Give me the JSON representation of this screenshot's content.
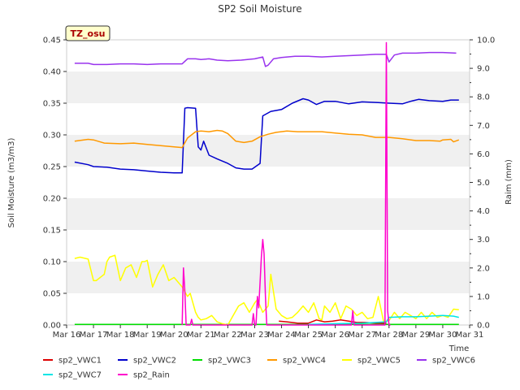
{
  "chart_data": {
    "type": "line",
    "title": "SP2 Soil Moisture",
    "xlabel": "Time",
    "ylabel": "Soil Moisture (m3/m3)",
    "y2label": "Raim (mm)",
    "station_badge": "TZ_osu",
    "xlim": [
      16,
      31
    ],
    "ylim": [
      0.0,
      0.45
    ],
    "y2lim": [
      0.0,
      10.0
    ],
    "x_ticks": [
      16,
      17,
      18,
      19,
      20,
      21,
      22,
      23,
      24,
      25,
      26,
      27,
      28,
      29,
      30,
      31
    ],
    "x_tick_labels": [
      "Mar 16",
      "Mar 17",
      "Mar 18",
      "Mar 19",
      "Mar 20",
      "Mar 21",
      "Mar 22",
      "Mar 23",
      "Mar 24",
      "Mar 25",
      "Mar 26",
      "Mar 27",
      "Mar 28",
      "Mar 29",
      "Mar 30",
      "Mar 31"
    ],
    "y_ticks": [
      0.0,
      0.05,
      0.1,
      0.15,
      0.2,
      0.25,
      0.3,
      0.35,
      0.4,
      0.45
    ],
    "y_tick_labels": [
      "0.00",
      "0.05",
      "0.10",
      "0.15",
      "0.20",
      "0.25",
      "0.30",
      "0.35",
      "0.40",
      "0.45"
    ],
    "y2_ticks": [
      0,
      1,
      2,
      3,
      4,
      5,
      6,
      7,
      8,
      9,
      10
    ],
    "y2_tick_labels": [
      "0.0",
      "1.0",
      "2.0",
      "3.0",
      "4.0",
      "5.0",
      "6.0",
      "7.0",
      "8.0",
      "9.0",
      "10.0"
    ],
    "band_step": 0.05,
    "series": [
      {
        "name": "sp2_VWC1",
        "color": "#dd0000",
        "axis": "left",
        "x": [
          23.9,
          24.2,
          24.6,
          25.0,
          25.3,
          25.6,
          25.9,
          26.2,
          26.5,
          26.8,
          27.1,
          27.5,
          27.9
        ],
        "y": [
          0.006,
          0.005,
          0.003,
          0.003,
          0.008,
          0.005,
          0.006,
          0.008,
          0.006,
          0.004,
          0.004,
          0.003,
          0.003
        ]
      },
      {
        "name": "sp2_VWC2",
        "color": "#0000cc",
        "axis": "left",
        "x": [
          16.3,
          16.8,
          17.0,
          17.5,
          18.0,
          18.5,
          19.0,
          19.5,
          20.0,
          20.3,
          20.4,
          20.5,
          20.8,
          20.9,
          21.0,
          21.1,
          21.3,
          21.6,
          22.0,
          22.3,
          22.6,
          22.9,
          23.2,
          23.3,
          23.6,
          24.0,
          24.4,
          24.8,
          25.0,
          25.3,
          25.6,
          26.0,
          26.5,
          27.0,
          27.6,
          28.0,
          28.5,
          28.8,
          29.1,
          29.5,
          30.0,
          30.3,
          30.6
        ],
        "y": [
          0.257,
          0.253,
          0.25,
          0.249,
          0.246,
          0.245,
          0.243,
          0.241,
          0.24,
          0.24,
          0.342,
          0.343,
          0.342,
          0.281,
          0.276,
          0.29,
          0.268,
          0.262,
          0.255,
          0.248,
          0.246,
          0.246,
          0.255,
          0.33,
          0.337,
          0.34,
          0.35,
          0.357,
          0.355,
          0.348,
          0.353,
          0.353,
          0.349,
          0.352,
          0.351,
          0.35,
          0.349,
          0.353,
          0.356,
          0.354,
          0.353,
          0.355,
          0.355
        ]
      },
      {
        "name": "sp2_VWC3",
        "color": "#00dd00",
        "axis": "left",
        "x": [
          16.3,
          30.6
        ],
        "y": [
          0.001,
          0.001
        ]
      },
      {
        "name": "sp2_VWC4",
        "color": "#ff9900",
        "axis": "left",
        "x": [
          16.3,
          16.8,
          17.0,
          17.4,
          18.0,
          18.5,
          19.0,
          19.5,
          20.0,
          20.3,
          20.5,
          20.8,
          21.0,
          21.3,
          21.6,
          21.8,
          22.0,
          22.3,
          22.6,
          22.9,
          23.2,
          23.5,
          23.8,
          24.2,
          24.6,
          25.0,
          25.5,
          26.0,
          26.5,
          27.0,
          27.5,
          28.0,
          28.5,
          29.0,
          29.5,
          29.9,
          30.0,
          30.3,
          30.4,
          30.6
        ],
        "y": [
          0.29,
          0.293,
          0.292,
          0.287,
          0.286,
          0.287,
          0.285,
          0.283,
          0.281,
          0.28,
          0.295,
          0.305,
          0.306,
          0.305,
          0.307,
          0.306,
          0.302,
          0.29,
          0.288,
          0.29,
          0.297,
          0.301,
          0.304,
          0.306,
          0.305,
          0.305,
          0.305,
          0.303,
          0.301,
          0.3,
          0.296,
          0.296,
          0.294,
          0.291,
          0.291,
          0.29,
          0.292,
          0.293,
          0.289,
          0.292
        ]
      },
      {
        "name": "sp2_VWC5",
        "color": "#ffff00",
        "axis": "left",
        "x": [
          16.3,
          16.5,
          16.8,
          17.0,
          17.1,
          17.4,
          17.5,
          17.6,
          17.8,
          18.0,
          18.2,
          18.4,
          18.6,
          18.8,
          18.9,
          19.0,
          19.2,
          19.4,
          19.6,
          19.8,
          20.0,
          20.1,
          20.3,
          20.5,
          20.6,
          20.7,
          20.8,
          20.9,
          21.0,
          21.2,
          21.4,
          21.6,
          21.8,
          22.0,
          22.2,
          22.4,
          22.6,
          22.8,
          23.0,
          23.1,
          23.3,
          23.5,
          23.6,
          23.8,
          23.9,
          24.0,
          24.2,
          24.4,
          24.6,
          24.8,
          25.0,
          25.2,
          25.4,
          25.5,
          25.6,
          25.8,
          26.0,
          26.2,
          26.4,
          26.6,
          26.8,
          27.0,
          27.2,
          27.4,
          27.6,
          27.8,
          28.0,
          28.2,
          28.4,
          28.6,
          28.8,
          29.0,
          29.2,
          29.4,
          29.6,
          29.8,
          30.0,
          30.2,
          30.4,
          30.6
        ],
        "y": [
          0.105,
          0.107,
          0.104,
          0.07,
          0.07,
          0.08,
          0.1,
          0.107,
          0.11,
          0.07,
          0.09,
          0.095,
          0.075,
          0.1,
          0.1,
          0.102,
          0.06,
          0.08,
          0.095,
          0.07,
          0.075,
          0.07,
          0.06,
          0.045,
          0.05,
          0.035,
          0.02,
          0.012,
          0.008,
          0.01,
          0.015,
          0.005,
          0.002,
          0.0,
          0.015,
          0.03,
          0.035,
          0.02,
          0.035,
          0.04,
          0.02,
          0.03,
          0.08,
          0.025,
          0.02,
          0.015,
          0.01,
          0.012,
          0.02,
          0.03,
          0.02,
          0.035,
          0.01,
          0.008,
          0.03,
          0.02,
          0.035,
          0.01,
          0.03,
          0.025,
          0.015,
          0.02,
          0.01,
          0.012,
          0.045,
          0.005,
          0.007,
          0.02,
          0.01,
          0.02,
          0.015,
          0.01,
          0.02,
          0.01,
          0.02,
          0.012,
          0.015,
          0.012,
          0.025,
          0.024
        ]
      },
      {
        "name": "sp2_VWC6",
        "color": "#9933ee",
        "axis": "left",
        "x": [
          16.3,
          16.8,
          17.0,
          17.5,
          18.0,
          18.5,
          19.0,
          19.5,
          20.0,
          20.3,
          20.5,
          20.8,
          21.0,
          21.3,
          21.6,
          22.0,
          22.5,
          23.0,
          23.3,
          23.4,
          23.5,
          23.7,
          24.0,
          24.5,
          25.0,
          25.5,
          26.0,
          26.5,
          27.0,
          27.5,
          27.9,
          28.0,
          28.2,
          28.5,
          29.0,
          29.5,
          30.0,
          30.5
        ],
        "y": [
          0.413,
          0.413,
          0.411,
          0.411,
          0.412,
          0.412,
          0.411,
          0.412,
          0.412,
          0.412,
          0.42,
          0.42,
          0.419,
          0.42,
          0.418,
          0.417,
          0.418,
          0.42,
          0.423,
          0.408,
          0.41,
          0.42,
          0.422,
          0.424,
          0.424,
          0.423,
          0.424,
          0.425,
          0.426,
          0.427,
          0.427,
          0.415,
          0.426,
          0.429,
          0.429,
          0.43,
          0.43,
          0.429
        ]
      },
      {
        "name": "sp2_VWC7",
        "color": "#00e5e5",
        "axis": "left",
        "x": [
          25.0,
          26.0,
          27.0,
          27.9,
          28.0,
          28.5,
          29.0,
          29.5,
          30.0,
          30.4,
          30.6
        ],
        "y": [
          0.001,
          0.002,
          0.003,
          0.005,
          0.012,
          0.013,
          0.013,
          0.014,
          0.015,
          0.014,
          0.012
        ]
      },
      {
        "name": "sp2_Rain",
        "color": "#ff00cc",
        "axis": "right",
        "x": [
          20.3,
          20.35,
          20.4,
          20.45,
          20.5,
          20.6,
          20.65,
          20.7,
          22.9,
          22.95,
          23.0,
          23.05,
          23.1,
          23.15,
          23.2,
          23.25,
          23.3,
          23.35,
          23.4,
          23.45,
          23.5,
          23.55,
          26.6,
          26.65,
          26.7,
          27.85,
          27.9,
          27.95,
          28.0,
          28.05
        ],
        "y": [
          0.0,
          2.0,
          1.2,
          0.0,
          0.0,
          0.0,
          0.2,
          0.0,
          0.0,
          0.4,
          0.0,
          0.0,
          1.0,
          0.6,
          1.5,
          2.4,
          3.0,
          2.5,
          1.0,
          0.0,
          0.0,
          0.0,
          0.0,
          0.5,
          0.0,
          0.0,
          9.9,
          0.5,
          0.0,
          0.0
        ]
      }
    ]
  }
}
